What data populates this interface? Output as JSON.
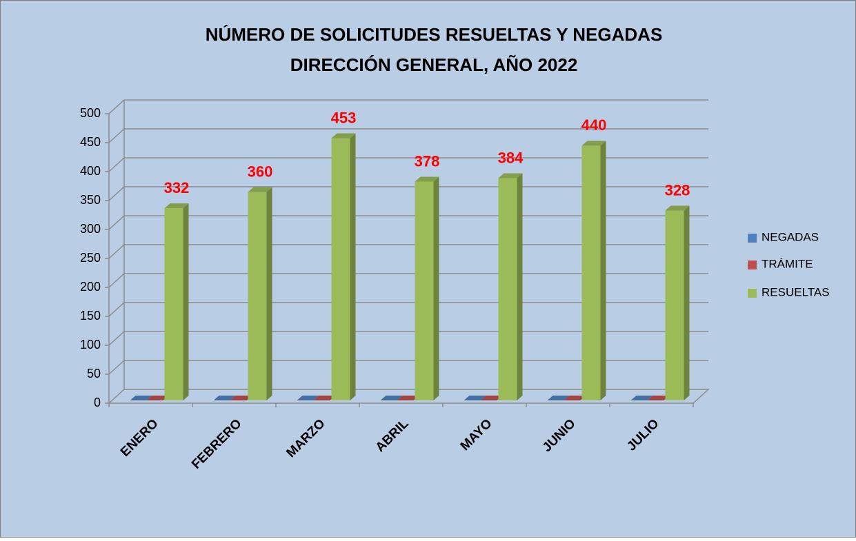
{
  "chart_data": {
    "type": "bar3d",
    "title": [
      "NÚMERO DE SOLICITUDES RESUELTAS Y NEGADAS",
      "DIRECCIÓN GENERAL, AÑO 2022"
    ],
    "categories": [
      "ENERO",
      "FEBRERO",
      "MARZO",
      "ABRIL",
      "MAYO",
      "JUNIO",
      "JULIO"
    ],
    "series": [
      {
        "name": "NEGADAS",
        "color": "#4f81bd",
        "values": [
          0,
          0,
          0,
          0,
          0,
          0,
          0
        ]
      },
      {
        "name": "TRÁMITE",
        "color": "#c0504d",
        "values": [
          0,
          0,
          0,
          0,
          0,
          0,
          0
        ]
      },
      {
        "name": "RESUELTAS",
        "color": "#9bbb59",
        "values": [
          332,
          360,
          453,
          378,
          384,
          440,
          328
        ],
        "data_labels": true
      }
    ],
    "ylim": [
      0,
      500
    ],
    "yticks": [
      0,
      50,
      100,
      150,
      200,
      250,
      300,
      350,
      400,
      450,
      500
    ],
    "grid": true,
    "legend": "right"
  }
}
